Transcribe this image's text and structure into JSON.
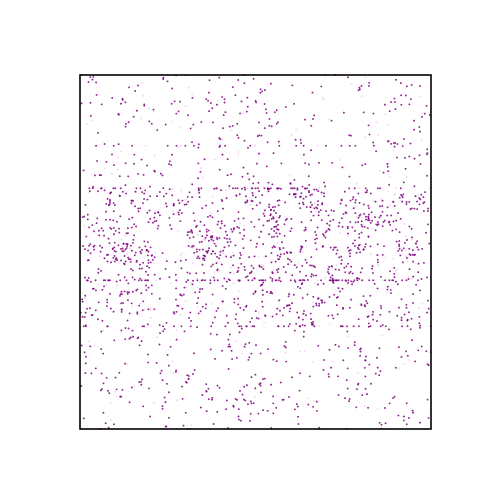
{
  "chart_data": {
    "type": "scatter",
    "title": "",
    "xlabel": "",
    "ylabel": "",
    "xlim": [
      0,
      1
    ],
    "ylim": [
      0,
      1
    ],
    "grid": false,
    "axes_ticks": false,
    "point_color": "#800080",
    "point_alpha": 0.16,
    "total_points": 20000,
    "distribution_bands": [
      {
        "y_range": [
          0.0,
          0.29
        ],
        "relative_density": 0.3
      },
      {
        "y_range": [
          0.29,
          0.42
        ],
        "relative_density": 0.75
      },
      {
        "y_range": [
          0.42,
          0.68
        ],
        "relative_density": 1.0
      },
      {
        "y_range": [
          0.68,
          0.8
        ],
        "relative_density": 0.35
      },
      {
        "y_range": [
          0.8,
          1.0
        ],
        "relative_density": 0.28
      }
    ]
  },
  "frame": {
    "stroke_color": "#000000"
  }
}
